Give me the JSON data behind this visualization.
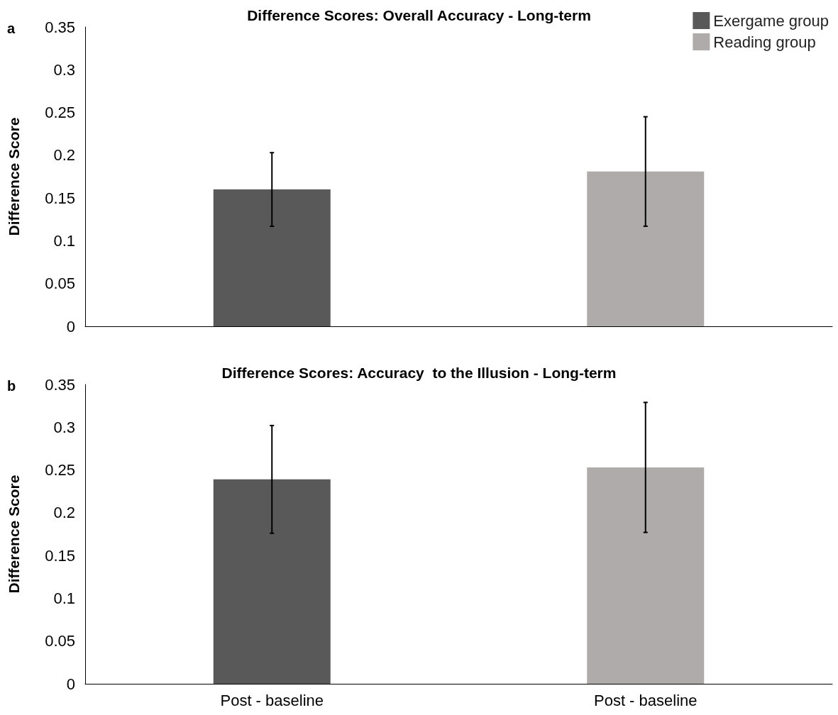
{
  "chart_data": [
    {
      "type": "bar",
      "title": "Difference Scores: Overall Accuracy - Long-term",
      "ylabel": "Difference Score",
      "annotations": [
        "a"
      ],
      "categories": [
        null,
        null
      ],
      "stacked": true,
      "series": [
        {
          "name": "Exergame group",
          "color": "#595959",
          "values": [
            0.16,
            null
          ],
          "errors": [
            0.043,
            null
          ]
        },
        {
          "name": "Reading group",
          "color": "#afabab",
          "values": [
            null,
            0.181
          ],
          "errors": [
            null,
            0.064
          ]
        }
      ],
      "ylim": [
        0,
        0.35
      ],
      "yticks": [
        0,
        0.05,
        0.1,
        0.15,
        0.2,
        0.25,
        0.3,
        0.35
      ],
      "grid": false,
      "legend": "top right"
    },
    {
      "type": "bar",
      "title": "Difference Scores: Accuracy  to the Illusion - Long-term",
      "ylabel": "Difference Score",
      "annotations": [
        "b"
      ],
      "categories": [
        "Post - baseline",
        "Post - baseline"
      ],
      "stacked": true,
      "series": [
        {
          "color": "#595959",
          "values": [
            0.239,
            null
          ],
          "errors": [
            0.063,
            null
          ]
        },
        {
          "color": "#afabab",
          "values": [
            null,
            0.253
          ],
          "errors": [
            null,
            0.076
          ]
        }
      ],
      "ylim": [
        0,
        0.35
      ],
      "yticks": [
        0,
        0.05,
        0.1,
        0.15,
        0.2,
        0.25,
        0.3,
        0.35
      ],
      "grid": false,
      "legend": false
    }
  ]
}
